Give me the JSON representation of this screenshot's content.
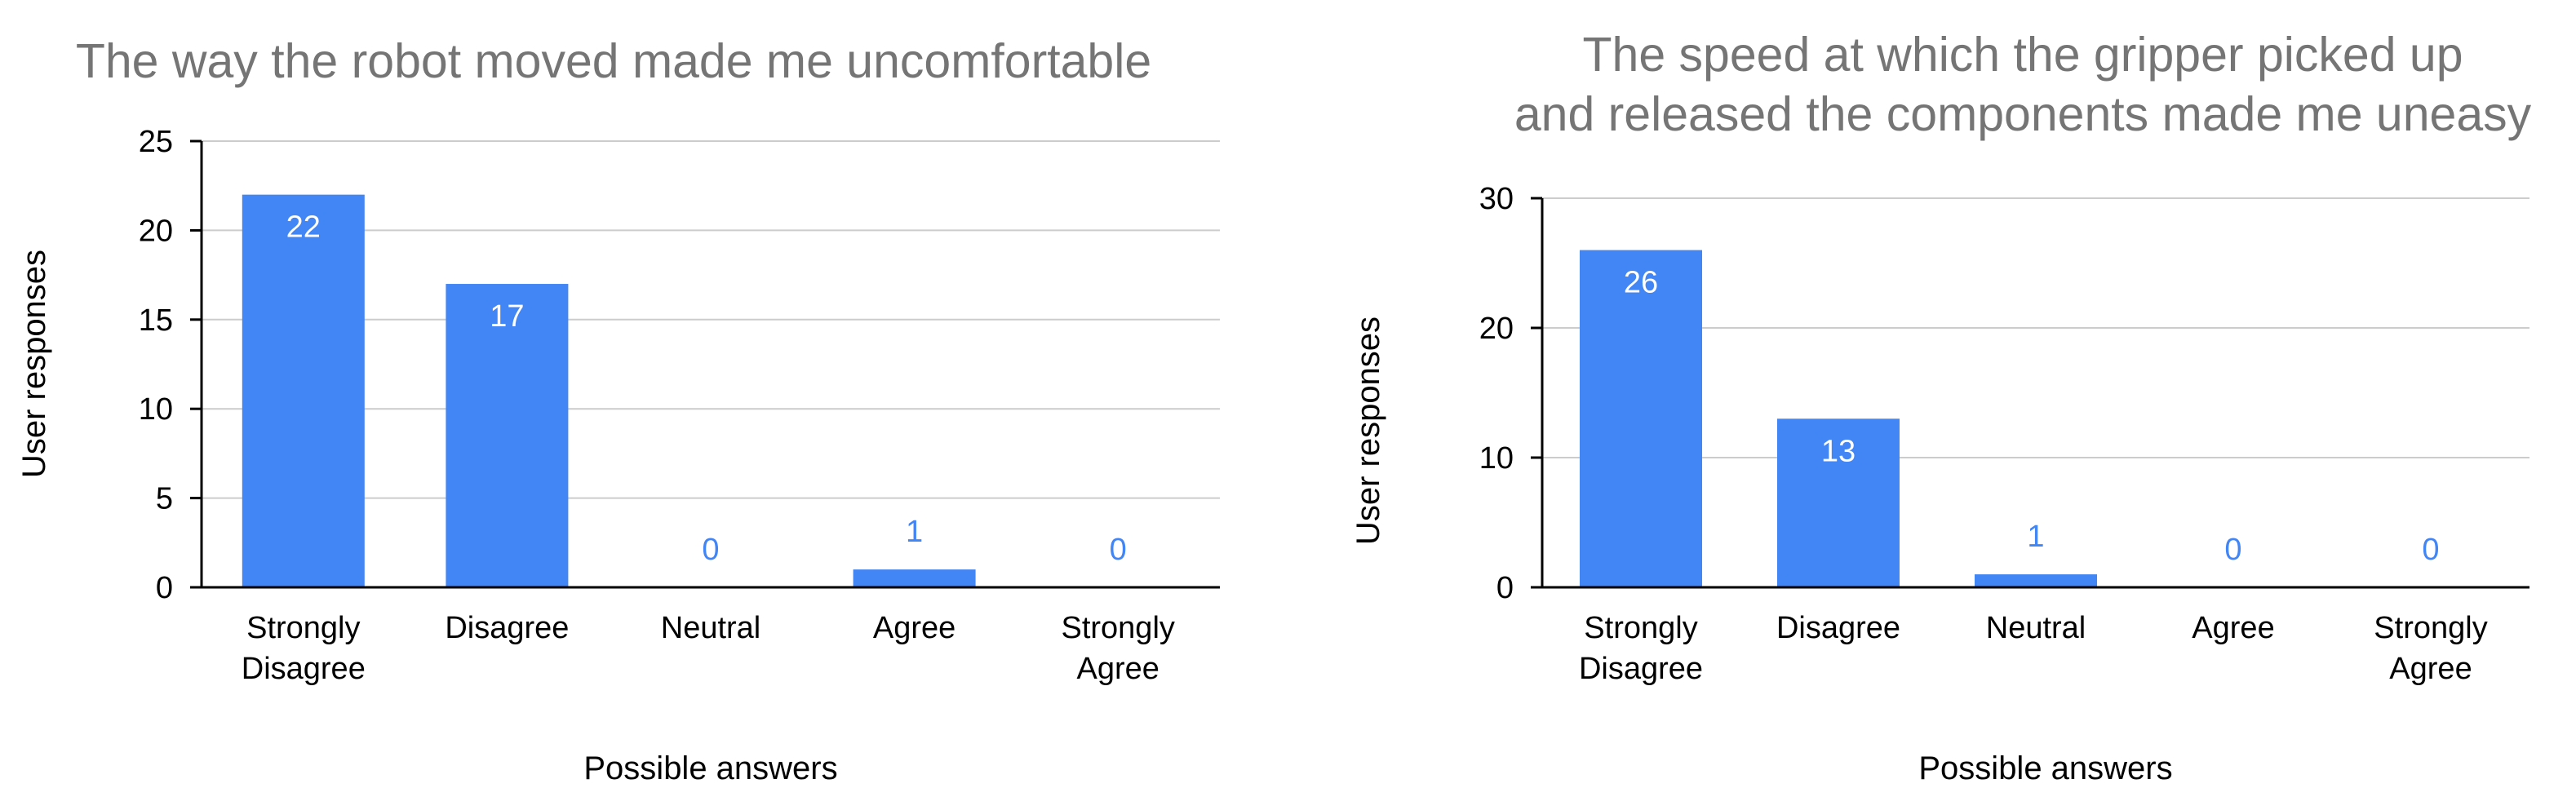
{
  "chart_data": [
    {
      "type": "bar",
      "title": [
        "The way the robot moved made me uncomfortable"
      ],
      "xlabel": "Possible answers",
      "ylabel": "User responses",
      "categories": [
        [
          "Strongly",
          "Disagree"
        ],
        [
          "Disagree"
        ],
        [
          "Neutral"
        ],
        [
          "Agree"
        ],
        [
          "Strongly",
          "Agree"
        ]
      ],
      "values": [
        22,
        17,
        0,
        1,
        0
      ],
      "ylim": [
        0,
        25
      ],
      "yticks": [
        0,
        5,
        10,
        15,
        20,
        25
      ],
      "grid": true,
      "legend": "none"
    },
    {
      "type": "bar",
      "title": [
        "The speed at which the gripper picked up",
        "and released the components made me uneasy"
      ],
      "xlabel": "Possible answers",
      "ylabel": "User responses",
      "categories": [
        [
          "Strongly",
          "Disagree"
        ],
        [
          "Disagree"
        ],
        [
          "Neutral"
        ],
        [
          "Agree"
        ],
        [
          "Strongly",
          "Agree"
        ]
      ],
      "values": [
        26,
        13,
        1,
        0,
        0
      ],
      "ylim": [
        0,
        30
      ],
      "yticks": [
        0,
        10,
        20,
        30
      ],
      "grid": true,
      "legend": "none"
    }
  ],
  "colors": {
    "bar": "#4285f4",
    "label_inside": "#ffffff",
    "label_outside": "#4285f4",
    "title": "#757575",
    "grid": "#cccccc",
    "axis": "#000000"
  }
}
